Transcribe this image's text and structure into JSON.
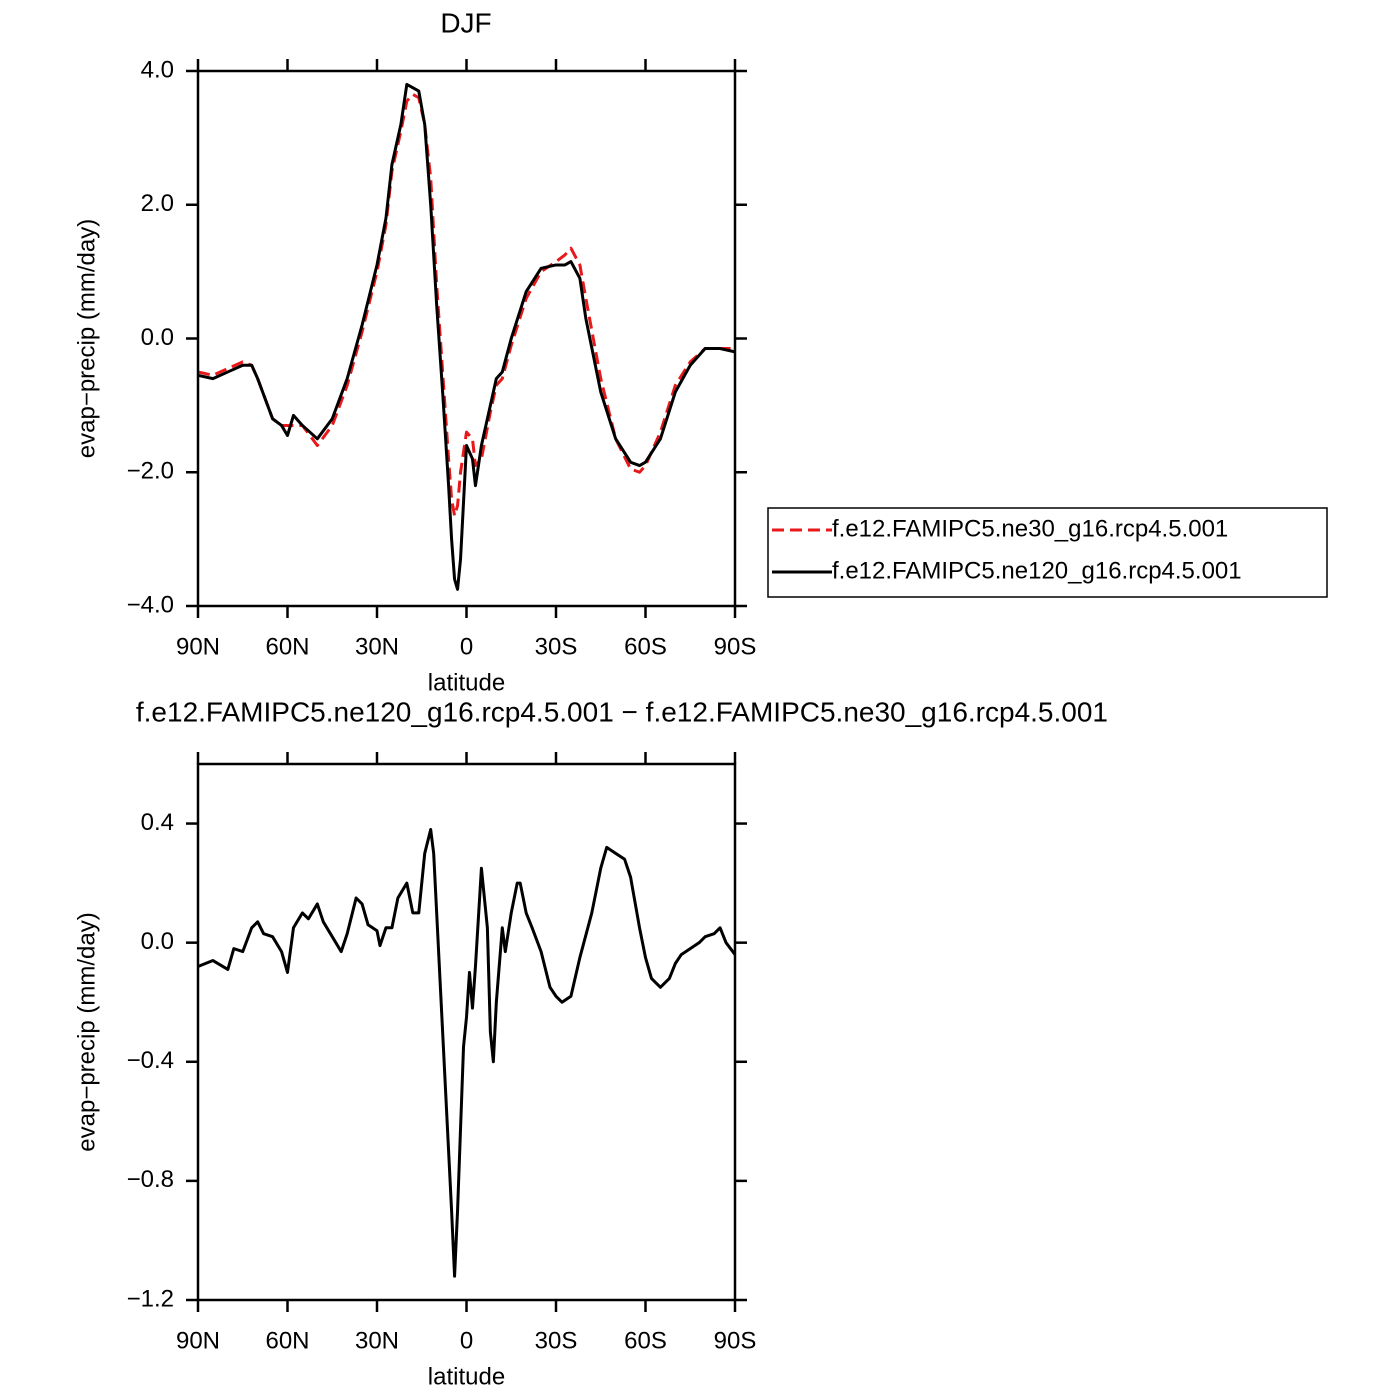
{
  "chart_data": [
    {
      "type": "line",
      "title": "DJF",
      "xlabel": "latitude",
      "ylabel": "evap−precip (mm/day)",
      "x": [
        90,
        85,
        80,
        75,
        72,
        70,
        65,
        62,
        60,
        58,
        55,
        50,
        45,
        40,
        35,
        30,
        27,
        25,
        22,
        20,
        18,
        16,
        14,
        12,
        10,
        8,
        6,
        5,
        4,
        3,
        2,
        0,
        -2,
        -3,
        -5,
        -8,
        -10,
        -12,
        -15,
        -20,
        -25,
        -30,
        -33,
        -35,
        -38,
        -40,
        -45,
        -50,
        -55,
        -58,
        -60,
        -65,
        -70,
        -75,
        -80,
        -85,
        -90
      ],
      "series": [
        {
          "name": "f.e12.FAMIPC5.ne30_g16.rcp4.5.001",
          "color": "#e8191b",
          "style": "dashed",
          "values": [
            -0.5,
            -0.55,
            -0.45,
            -0.35,
            -0.4,
            -0.6,
            -1.2,
            -1.3,
            -1.3,
            -1.3,
            -1.3,
            -1.6,
            -1.3,
            -0.7,
            0.1,
            1.0,
            1.7,
            2.5,
            3.1,
            3.55,
            3.65,
            3.6,
            3.2,
            2.4,
            0.8,
            -0.5,
            -1.8,
            -2.4,
            -2.65,
            -2.5,
            -2.0,
            -1.4,
            -1.5,
            -1.9,
            -1.8,
            -1.1,
            -0.7,
            -0.6,
            -0.1,
            0.6,
            1.0,
            1.15,
            1.25,
            1.35,
            1.1,
            0.6,
            -0.6,
            -1.5,
            -1.95,
            -2.0,
            -1.9,
            -1.4,
            -0.7,
            -0.35,
            -0.15,
            -0.15,
            -0.15
          ]
        },
        {
          "name": "f.e12.FAMIPC5.ne120_g16.rcp4.5.001",
          "color": "#000000",
          "style": "solid",
          "values": [
            -0.55,
            -0.6,
            -0.5,
            -0.4,
            -0.4,
            -0.6,
            -1.2,
            -1.3,
            -1.45,
            -1.15,
            -1.3,
            -1.5,
            -1.2,
            -0.6,
            0.2,
            1.1,
            1.8,
            2.6,
            3.2,
            3.8,
            3.75,
            3.7,
            3.2,
            2.0,
            0.5,
            -0.8,
            -2.2,
            -3.0,
            -3.6,
            -3.75,
            -3.3,
            -1.6,
            -1.8,
            -2.2,
            -1.6,
            -1.0,
            -0.6,
            -0.5,
            0.0,
            0.7,
            1.05,
            1.1,
            1.1,
            1.15,
            0.9,
            0.3,
            -0.8,
            -1.5,
            -1.85,
            -1.9,
            -1.85,
            -1.5,
            -0.8,
            -0.4,
            -0.15,
            -0.15,
            -0.2
          ]
        }
      ],
      "xlim": [
        90,
        -90
      ],
      "xticks": [
        {
          "value": 90,
          "label": "90N"
        },
        {
          "value": 60,
          "label": "60N"
        },
        {
          "value": 30,
          "label": "30N"
        },
        0,
        {
          "value": -30,
          "label": "30S"
        },
        {
          "value": -60,
          "label": "60S"
        },
        {
          "value": -90,
          "label": "90S"
        }
      ],
      "ylim": [
        -4,
        4
      ],
      "yticks": [
        {
          "value": -4,
          "label": "−4.0"
        },
        {
          "value": -2,
          "label": "−2.0"
        },
        {
          "value": 0,
          "label": "0.0"
        },
        {
          "value": 2,
          "label": "2.0"
        },
        {
          "value": 4,
          "label": "4.0"
        }
      ],
      "legend": "right"
    },
    {
      "type": "line",
      "title": "f.e12.FAMIPC5.ne120_g16.rcp4.5.001 − f.e12.FAMIPC5.ne30_g16.rcp4.5.001",
      "xlabel": "latitude",
      "ylabel": "evap−precip (mm/day)",
      "x": [
        90,
        85,
        80,
        78,
        75,
        72,
        70,
        68,
        65,
        62,
        60,
        58,
        55,
        53,
        50,
        48,
        45,
        42,
        40,
        37,
        35,
        33,
        30,
        29,
        27,
        25,
        23,
        20,
        18,
        16,
        14,
        12,
        11,
        10,
        8,
        6,
        5,
        4,
        3,
        1,
        0,
        -1,
        -2,
        -3,
        -5,
        -7,
        -8,
        -9,
        -10,
        -12,
        -13,
        -15,
        -17,
        -18,
        -20,
        -22,
        -25,
        -28,
        -30,
        -32,
        -35,
        -38,
        -42,
        -45,
        -47,
        -50,
        -53,
        -55,
        -58,
        -60,
        -62,
        -65,
        -68,
        -70,
        -72,
        -75,
        -78,
        -80,
        -83,
        -85,
        -87,
        -90
      ],
      "series": [
        {
          "color": "#000000",
          "style": "solid",
          "values": [
            -0.08,
            -0.06,
            -0.09,
            -0.02,
            -0.03,
            0.05,
            0.07,
            0.03,
            0.02,
            -0.03,
            -0.1,
            0.05,
            0.1,
            0.08,
            0.13,
            0.07,
            0.02,
            -0.03,
            0.03,
            0.15,
            0.13,
            0.06,
            0.04,
            -0.01,
            0.05,
            0.05,
            0.15,
            0.2,
            0.1,
            0.1,
            0.3,
            0.38,
            0.3,
            0.1,
            -0.3,
            -0.7,
            -0.9,
            -1.12,
            -0.9,
            -0.35,
            -0.25,
            -0.1,
            -0.22,
            -0.08,
            0.25,
            0.05,
            -0.3,
            -0.4,
            -0.2,
            0.05,
            -0.03,
            0.1,
            0.2,
            0.2,
            0.1,
            0.05,
            -0.03,
            -0.15,
            -0.18,
            -0.2,
            -0.18,
            -0.05,
            0.1,
            0.25,
            0.32,
            0.3,
            0.28,
            0.22,
            0.05,
            -0.05,
            -0.12,
            -0.15,
            -0.12,
            -0.07,
            -0.04,
            -0.02,
            0.0,
            0.02,
            0.03,
            0.05,
            0.0,
            -0.04
          ]
        }
      ],
      "xlim": [
        90,
        -90
      ],
      "xticks": [
        {
          "value": 90,
          "label": "90N"
        },
        {
          "value": 60,
          "label": "60N"
        },
        {
          "value": 30,
          "label": "30N"
        },
        0,
        {
          "value": -30,
          "label": "30S"
        },
        {
          "value": -60,
          "label": "60S"
        },
        {
          "value": -90,
          "label": "90S"
        }
      ],
      "ylim": [
        -1.2,
        0.6
      ],
      "yticks": [
        {
          "value": -1.2,
          "label": "−1.2"
        },
        {
          "value": -0.8,
          "label": "−0.8"
        },
        {
          "value": -0.4,
          "label": "−0.4"
        },
        {
          "value": 0,
          "label": "0.0"
        },
        {
          "value": 0.4,
          "label": "0.4"
        }
      ]
    }
  ]
}
